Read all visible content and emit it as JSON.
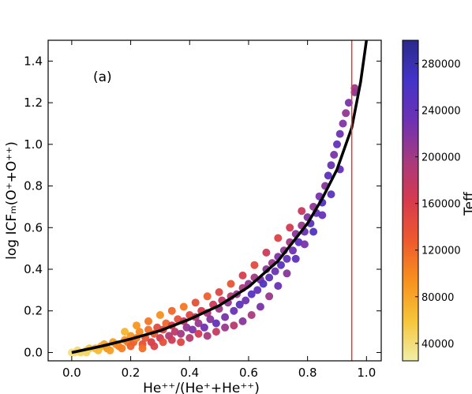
{
  "chart_data": {
    "type": "scatter",
    "annotation": "(a)",
    "xlabel": "He⁺⁺/(He⁺+He⁺⁺)",
    "ylabel": "log ICFₘ(O⁺+O⁺⁺)",
    "xlim": [
      -0.08,
      1.05
    ],
    "ylim": [
      -0.04,
      1.5
    ],
    "xticks": [
      0.0,
      0.2,
      0.4,
      0.6,
      0.8,
      1.0
    ],
    "xtick_labels": [
      "0.0",
      "0.2",
      "0.4",
      "0.6",
      "0.8",
      "1.0"
    ],
    "yticks": [
      0.0,
      0.2,
      0.4,
      0.6,
      0.8,
      1.0,
      1.2,
      1.4
    ],
    "ytick_labels": [
      "0.0",
      "0.2",
      "0.4",
      "0.6",
      "0.8",
      "1.0",
      "1.2",
      "1.4"
    ],
    "vertical_line": {
      "x": 0.95,
      "color": "#e8392f"
    },
    "fit_curve": {
      "color": "#000000",
      "x": [
        0.0,
        0.1,
        0.2,
        0.3,
        0.4,
        0.5,
        0.6,
        0.7,
        0.8,
        0.85,
        0.9,
        0.95,
        0.98,
        1.0
      ],
      "y": [
        0.0,
        0.03,
        0.065,
        0.105,
        0.16,
        0.225,
        0.315,
        0.44,
        0.62,
        0.74,
        0.88,
        1.08,
        1.3,
        1.5
      ]
    },
    "colorbar": {
      "label": "Teff",
      "range": [
        25000,
        300000
      ],
      "ticks": [
        40000,
        80000,
        120000,
        160000,
        200000,
        240000,
        280000
      ],
      "tick_labels": [
        "40000",
        "80000",
        "120000",
        "160000",
        "200000",
        "240000",
        "280000"
      ],
      "stops": [
        "#f0eea8",
        "#f6c53a",
        "#f7911e",
        "#ee5a2d",
        "#d73a4e",
        "#a73a7e",
        "#6d32b3",
        "#4433c9",
        "#2a2a8a"
      ]
    },
    "points": [
      [
        0.0,
        0.0,
        35000
      ],
      [
        0.01,
        0.0,
        38000
      ],
      [
        0.02,
        0.01,
        42000
      ],
      [
        0.03,
        0.0,
        45000
      ],
      [
        0.05,
        0.01,
        50000
      ],
      [
        0.06,
        0.02,
        60000
      ],
      [
        0.08,
        0.02,
        70000
      ],
      [
        0.1,
        0.03,
        75000
      ],
      [
        0.11,
        0.04,
        80000
      ],
      [
        0.12,
        0.02,
        90000
      ],
      [
        0.14,
        0.05,
        85000
      ],
      [
        0.15,
        0.04,
        95000
      ],
      [
        0.16,
        0.03,
        100000
      ],
      [
        0.18,
        0.06,
        92000
      ],
      [
        0.19,
        0.05,
        110000
      ],
      [
        0.2,
        0.08,
        88000
      ],
      [
        0.21,
        0.05,
        125000
      ],
      [
        0.22,
        0.07,
        105000
      ],
      [
        0.23,
        0.1,
        98000
      ],
      [
        0.24,
        0.04,
        140000
      ],
      [
        0.25,
        0.07,
        135000
      ],
      [
        0.26,
        0.11,
        115000
      ],
      [
        0.27,
        0.05,
        160000
      ],
      [
        0.28,
        0.09,
        130000
      ],
      [
        0.29,
        0.12,
        145000
      ],
      [
        0.3,
        0.07,
        170000
      ],
      [
        0.31,
        0.11,
        150000
      ],
      [
        0.32,
        0.14,
        120000
      ],
      [
        0.33,
        0.08,
        190000
      ],
      [
        0.34,
        0.13,
        165000
      ],
      [
        0.35,
        0.1,
        180000
      ],
      [
        0.36,
        0.16,
        140000
      ],
      [
        0.37,
        0.09,
        200000
      ],
      [
        0.38,
        0.15,
        175000
      ],
      [
        0.39,
        0.12,
        210000
      ],
      [
        0.4,
        0.18,
        150000
      ],
      [
        0.41,
        0.11,
        220000
      ],
      [
        0.42,
        0.17,
        185000
      ],
      [
        0.43,
        0.14,
        205000
      ],
      [
        0.44,
        0.2,
        160000
      ],
      [
        0.45,
        0.12,
        230000
      ],
      [
        0.46,
        0.19,
        195000
      ],
      [
        0.47,
        0.16,
        215000
      ],
      [
        0.48,
        0.23,
        170000
      ],
      [
        0.49,
        0.14,
        240000
      ],
      [
        0.5,
        0.21,
        200000
      ],
      [
        0.51,
        0.25,
        180000
      ],
      [
        0.52,
        0.17,
        225000
      ],
      [
        0.53,
        0.24,
        210000
      ],
      [
        0.54,
        0.27,
        190000
      ],
      [
        0.55,
        0.2,
        235000
      ],
      [
        0.56,
        0.28,
        205000
      ],
      [
        0.57,
        0.23,
        245000
      ],
      [
        0.58,
        0.31,
        195000
      ],
      [
        0.59,
        0.25,
        230000
      ],
      [
        0.6,
        0.33,
        210000
      ],
      [
        0.61,
        0.28,
        250000
      ],
      [
        0.62,
        0.36,
        200000
      ],
      [
        0.63,
        0.3,
        240000
      ],
      [
        0.64,
        0.35,
        225000
      ],
      [
        0.65,
        0.33,
        255000
      ],
      [
        0.66,
        0.4,
        215000
      ],
      [
        0.67,
        0.36,
        245000
      ],
      [
        0.68,
        0.43,
        205000
      ],
      [
        0.69,
        0.39,
        235000
      ],
      [
        0.7,
        0.46,
        220000
      ],
      [
        0.71,
        0.42,
        250000
      ],
      [
        0.72,
        0.49,
        210000
      ],
      [
        0.73,
        0.45,
        240000
      ],
      [
        0.74,
        0.53,
        200000
      ],
      [
        0.75,
        0.49,
        230000
      ],
      [
        0.76,
        0.57,
        215000
      ],
      [
        0.77,
        0.53,
        245000
      ],
      [
        0.78,
        0.61,
        205000
      ],
      [
        0.79,
        0.58,
        235000
      ],
      [
        0.8,
        0.65,
        220000
      ],
      [
        0.81,
        0.62,
        250000
      ],
      [
        0.82,
        0.7,
        210000
      ],
      [
        0.83,
        0.67,
        240000
      ],
      [
        0.84,
        0.75,
        225000
      ],
      [
        0.85,
        0.72,
        255000
      ],
      [
        0.86,
        0.8,
        215000
      ],
      [
        0.87,
        0.85,
        245000
      ],
      [
        0.88,
        0.9,
        235000
      ],
      [
        0.89,
        0.95,
        225000
      ],
      [
        0.9,
        1.0,
        240000
      ],
      [
        0.91,
        1.05,
        230000
      ],
      [
        0.92,
        1.1,
        220000
      ],
      [
        0.93,
        1.15,
        210000
      ],
      [
        0.94,
        1.2,
        225000
      ],
      [
        0.96,
        1.25,
        215000
      ],
      [
        0.96,
        1.27,
        205000
      ],
      [
        0.05,
        0.0,
        45000
      ],
      [
        0.09,
        0.01,
        65000
      ],
      [
        0.13,
        0.01,
        85000
      ],
      [
        0.17,
        0.02,
        105000
      ],
      [
        0.2,
        0.03,
        125000
      ],
      [
        0.24,
        0.02,
        115000
      ],
      [
        0.28,
        0.03,
        155000
      ],
      [
        0.31,
        0.05,
        140000
      ],
      [
        0.34,
        0.06,
        170000
      ],
      [
        0.37,
        0.05,
        150000
      ],
      [
        0.4,
        0.07,
        185000
      ],
      [
        0.43,
        0.09,
        165000
      ],
      [
        0.46,
        0.08,
        195000
      ],
      [
        0.49,
        0.1,
        175000
      ],
      [
        0.52,
        0.12,
        205000
      ],
      [
        0.55,
        0.13,
        185000
      ],
      [
        0.58,
        0.15,
        215000
      ],
      [
        0.61,
        0.18,
        195000
      ],
      [
        0.64,
        0.22,
        225000
      ],
      [
        0.67,
        0.27,
        205000
      ],
      [
        0.7,
        0.32,
        235000
      ],
      [
        0.73,
        0.38,
        215000
      ],
      [
        0.76,
        0.45,
        245000
      ],
      [
        0.79,
        0.52,
        225000
      ],
      [
        0.82,
        0.58,
        255000
      ],
      [
        0.85,
        0.66,
        235000
      ],
      [
        0.88,
        0.76,
        250000
      ],
      [
        0.91,
        0.88,
        240000
      ],
      [
        0.18,
        0.1,
        70000
      ],
      [
        0.22,
        0.13,
        90000
      ],
      [
        0.26,
        0.15,
        110000
      ],
      [
        0.3,
        0.18,
        95000
      ],
      [
        0.34,
        0.2,
        120000
      ],
      [
        0.38,
        0.22,
        110000
      ],
      [
        0.42,
        0.24,
        140000
      ],
      [
        0.46,
        0.27,
        125000
      ],
      [
        0.5,
        0.29,
        150000
      ],
      [
        0.54,
        0.33,
        135000
      ],
      [
        0.58,
        0.37,
        160000
      ],
      [
        0.62,
        0.42,
        145000
      ],
      [
        0.66,
        0.48,
        170000
      ],
      [
        0.7,
        0.55,
        155000
      ],
      [
        0.74,
        0.6,
        165000
      ],
      [
        0.78,
        0.68,
        175000
      ]
    ]
  }
}
